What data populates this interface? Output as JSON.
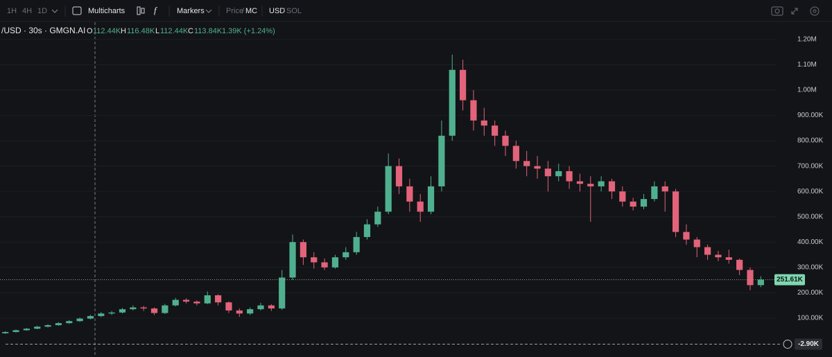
{
  "toolbar": {
    "intervals": [
      "1H",
      "4H",
      "1D"
    ],
    "multicharts": "Multicharts",
    "markers": "Markers",
    "price": "Price",
    "mc": "MC",
    "usd": "USD",
    "sol": "SOL"
  },
  "legend": {
    "symbol": "/USD · 30s · GMGN.AI",
    "o": "O",
    "open": "112.44K",
    "h": "H",
    "high": "116.48K",
    "l": "L",
    "low": "112.44K",
    "c": "C",
    "close": "113.84K",
    "change": "1.39K (+1.24%)"
  },
  "chart_data": {
    "type": "candlestick",
    "up_color": "#4fb08f",
    "down_color": "#e2637a",
    "open": [
      40000,
      45000,
      52000,
      58000,
      66000,
      72000,
      80000,
      88000,
      98000,
      108000,
      118000,
      122000,
      135000,
      142000,
      138000,
      120000,
      150000,
      172000,
      165000,
      158000,
      190000,
      162000,
      130000,
      118000,
      135000,
      150000,
      138000,
      260000,
      400000,
      340000,
      320000,
      300000,
      340000,
      360000,
      420000,
      470000,
      520000,
      700000,
      620000,
      560000,
      520000,
      620000,
      820000,
      1080000,
      960000,
      880000,
      860000,
      820000,
      780000,
      720000,
      700000,
      690000,
      660000,
      680000,
      640000,
      630000,
      620000,
      640000,
      600000,
      560000,
      540000,
      570000,
      620000,
      600000,
      440000,
      410000,
      380000,
      350000,
      340000,
      330000,
      290000,
      230000
    ],
    "high": [
      48000,
      55000,
      61000,
      70000,
      76000,
      84000,
      92000,
      102000,
      113000,
      124000,
      128000,
      140000,
      150000,
      148000,
      142000,
      156000,
      180000,
      178000,
      170000,
      205000,
      194000,
      166000,
      138000,
      142000,
      160000,
      155000,
      290000,
      430000,
      410000,
      360000,
      335000,
      350000,
      380000,
      440000,
      490000,
      540000,
      750000,
      730000,
      650000,
      590000,
      660000,
      880000,
      1140000,
      1120000,
      1000000,
      930000,
      880000,
      840000,
      800000,
      760000,
      740000,
      720000,
      710000,
      700000,
      670000,
      660000,
      660000,
      650000,
      620000,
      575000,
      590000,
      640000,
      640000,
      610000,
      470000,
      420000,
      390000,
      365000,
      370000,
      335000,
      300000,
      265000
    ],
    "low": [
      38000,
      43000,
      50000,
      56000,
      63000,
      70000,
      77000,
      85000,
      95000,
      104000,
      112000,
      118000,
      130000,
      128000,
      112000,
      116000,
      146000,
      158000,
      150000,
      155000,
      150000,
      120000,
      105000,
      112000,
      130000,
      128000,
      132000,
      250000,
      310000,
      295000,
      290000,
      295000,
      330000,
      350000,
      410000,
      460000,
      510000,
      590000,
      520000,
      480000,
      510000,
      600000,
      800000,
      920000,
      840000,
      820000,
      780000,
      740000,
      690000,
      660000,
      650000,
      600000,
      640000,
      610000,
      600000,
      480000,
      600000,
      570000,
      540000,
      525000,
      530000,
      560000,
      520000,
      420000,
      390000,
      340000,
      330000,
      325000,
      315000,
      270000,
      210000,
      222000
    ],
    "close": [
      45000,
      52000,
      58000,
      66000,
      72000,
      80000,
      88000,
      98000,
      108000,
      118000,
      122000,
      135000,
      142000,
      138000,
      120000,
      150000,
      172000,
      165000,
      158000,
      190000,
      162000,
      130000,
      118000,
      135000,
      150000,
      138000,
      260000,
      400000,
      340000,
      320000,
      300000,
      340000,
      360000,
      420000,
      470000,
      520000,
      700000,
      620000,
      560000,
      520000,
      620000,
      820000,
      1080000,
      960000,
      880000,
      860000,
      820000,
      780000,
      720000,
      700000,
      690000,
      660000,
      680000,
      640000,
      630000,
      620000,
      640000,
      600000,
      560000,
      540000,
      570000,
      620000,
      600000,
      440000,
      410000,
      380000,
      350000,
      340000,
      330000,
      290000,
      230000,
      252000
    ],
    "ylim": [
      -40000,
      1260000
    ],
    "yticks": [
      {
        "value": 100000,
        "label": "100.00K"
      },
      {
        "value": 200000,
        "label": "200.00K"
      },
      {
        "value": 300000,
        "label": "300.00K"
      },
      {
        "value": 400000,
        "label": "400.00K"
      },
      {
        "value": 500000,
        "label": "500.00K"
      },
      {
        "value": 600000,
        "label": "600.00K"
      },
      {
        "value": 700000,
        "label": "700.00K"
      },
      {
        "value": 800000,
        "label": "800.00K"
      },
      {
        "value": 900000,
        "label": "900.00K"
      },
      {
        "value": 1000000,
        "label": "1.00M"
      },
      {
        "value": 1100000,
        "label": "1.10M"
      },
      {
        "value": 1200000,
        "label": "1.20M"
      }
    ],
    "price_line": {
      "value": 251610,
      "label": "251.61K"
    },
    "pnl_line": {
      "value": -2900,
      "label": "-2.90K"
    },
    "grid": true
  }
}
